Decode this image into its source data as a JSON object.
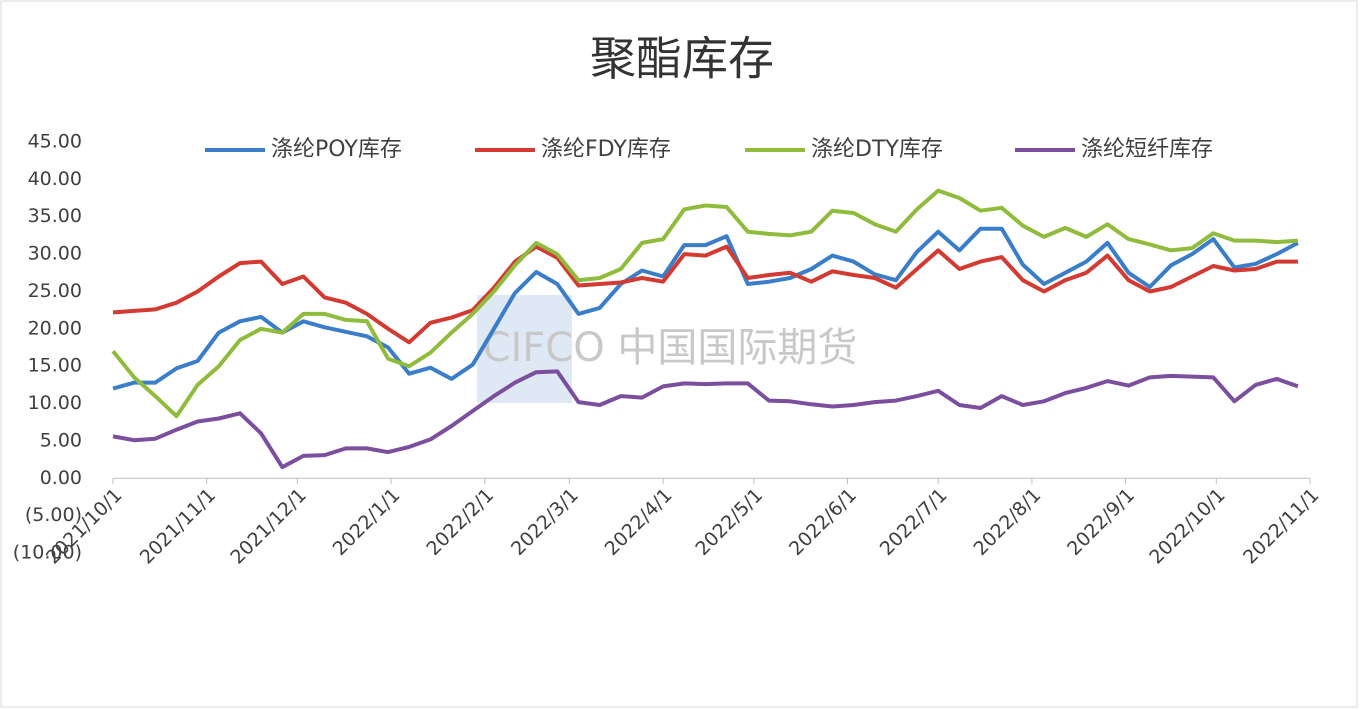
{
  "chart_data": {
    "type": "line",
    "title": "聚酯库存",
    "watermark": "CIFCO 中国国际期货",
    "x": [
      "2021/10/1",
      "2021/10/8",
      "2021/10/15",
      "2021/10/22",
      "2021/10/29",
      "2021/11/5",
      "2021/11/12",
      "2021/11/19",
      "2021/11/26",
      "2021/12/3",
      "2021/12/10",
      "2021/12/17",
      "2021/12/24",
      "2021/12/31",
      "2022/1/7",
      "2022/1/14",
      "2022/1/21",
      "2022/1/28",
      "2022/2/4",
      "2022/2/11",
      "2022/2/18",
      "2022/2/25",
      "2022/3/4",
      "2022/3/11",
      "2022/3/18",
      "2022/3/25",
      "2022/4/1",
      "2022/4/8",
      "2022/4/15",
      "2022/4/22",
      "2022/4/29",
      "2022/5/6",
      "2022/5/13",
      "2022/5/20",
      "2022/5/27",
      "2022/6/3",
      "2022/6/10",
      "2022/6/17",
      "2022/6/24",
      "2022/7/1",
      "2022/7/8",
      "2022/7/15",
      "2022/7/22",
      "2022/7/29",
      "2022/8/5",
      "2022/8/12",
      "2022/8/19",
      "2022/8/26",
      "2022/9/2",
      "2022/9/9",
      "2022/9/16",
      "2022/9/23",
      "2022/9/30",
      "2022/10/7",
      "2022/10/14",
      "2022/10/21",
      "2022/10/28"
    ],
    "series": [
      {
        "name": "涤纶POY库存",
        "color": "#3a7dc9",
        "values": [
          12,
          12.8,
          12.8,
          14.7,
          15.7,
          19.5,
          21,
          21.6,
          19.5,
          21,
          20.2,
          19.6,
          19,
          17.5,
          14,
          14.8,
          13.3,
          15.2,
          20,
          24.8,
          27.6,
          26,
          22,
          22.8,
          26,
          27.8,
          27,
          31.2,
          31.2,
          32.4,
          26,
          26.3,
          26.8,
          28,
          29.8,
          29,
          27.3,
          26.5,
          30.3,
          33,
          30.5,
          33.4,
          33.4,
          28.6,
          26,
          27.5,
          29,
          31.5,
          27.5,
          25.6,
          28.5,
          30,
          32,
          28.2,
          28.7,
          30,
          31.5
        ]
      },
      {
        "name": "涤纶FDY库存",
        "color": "#d23a32",
        "values": [
          22.2,
          22.4,
          22.6,
          23.5,
          25,
          27,
          28.8,
          29,
          26,
          27,
          24.2,
          23.5,
          22,
          20,
          18.2,
          20.8,
          21.5,
          22.5,
          25.5,
          29,
          31,
          29.5,
          25.8,
          26,
          26.2,
          26.8,
          26.3,
          30,
          29.8,
          31,
          26.8,
          27.2,
          27.5,
          26.3,
          27.7,
          27.2,
          26.8,
          25.5,
          28,
          30.5,
          28,
          29,
          29.6,
          26.5,
          25,
          26.5,
          27.5,
          29.8,
          26.5,
          25,
          25.6,
          27,
          28.4,
          27.8,
          28,
          29,
          29
        ]
      },
      {
        "name": "涤纶DTY库存",
        "color": "#8fbc3c",
        "values": [
          17,
          13.5,
          11,
          8.3,
          12.5,
          15,
          18.5,
          20,
          19.5,
          22,
          22,
          21.2,
          21,
          16,
          15,
          16.8,
          19.5,
          22,
          25,
          28.5,
          31.5,
          30,
          26.5,
          26.8,
          28,
          31.5,
          32,
          36,
          36.5,
          36.3,
          33,
          32.7,
          32.5,
          33,
          35.8,
          35.5,
          34,
          33,
          36,
          38.5,
          37.5,
          35.8,
          36.2,
          33.8,
          32.3,
          33.5,
          32.3,
          34,
          32,
          31.3,
          30.5,
          30.8,
          32.8,
          31.8,
          31.8,
          31.6,
          31.8
        ]
      },
      {
        "name": "涤纶短纤库存",
        "color": "#7b4f9e",
        "values": [
          5.6,
          5.1,
          5.3,
          6.5,
          7.6,
          8,
          8.7,
          6,
          1.5,
          3,
          3.1,
          4,
          4,
          3.5,
          4.2,
          5.2,
          7,
          9,
          11,
          12.8,
          14.2,
          14.3,
          10.2,
          9.8,
          11,
          10.8,
          12.3,
          12.7,
          12.6,
          12.7,
          12.7,
          10.4,
          10.3,
          9.9,
          9.6,
          9.8,
          10.2,
          10.4,
          11,
          11.7,
          9.8,
          9.4,
          11,
          9.8,
          10.3,
          11.4,
          12.1,
          13,
          12.4,
          13.5,
          13.7,
          13.6,
          13.5,
          10.3,
          12.5,
          13.3,
          12.3
        ]
      }
    ],
    "xlim": [
      "2021/10/1",
      "2022/11/1"
    ],
    "xticks": [
      "2021/10/1",
      "2021/11/1",
      "2021/12/1",
      "2022/1/1",
      "2022/2/1",
      "2022/3/1",
      "2022/4/1",
      "2022/5/1",
      "2022/6/1",
      "2022/7/1",
      "2022/8/1",
      "2022/9/1",
      "2022/10/1",
      "2022/11/1"
    ],
    "ylim": [
      -10,
      45
    ],
    "yticks": [
      {
        "value": -10,
        "label": "(10.00)"
      },
      {
        "value": -5,
        "label": "(5.00)"
      },
      {
        "value": 0,
        "label": "0.00"
      },
      {
        "value": 5,
        "label": "5.00"
      },
      {
        "value": 10,
        "label": "10.00"
      },
      {
        "value": 15,
        "label": "15.00"
      },
      {
        "value": 20,
        "label": "20.00"
      },
      {
        "value": 25,
        "label": "25.00"
      },
      {
        "value": 30,
        "label": "30.00"
      },
      {
        "value": 35,
        "label": "35.00"
      },
      {
        "value": 40,
        "label": "40.00"
      },
      {
        "value": 45,
        "label": "45.00"
      }
    ],
    "grid": false,
    "legend": "top"
  }
}
